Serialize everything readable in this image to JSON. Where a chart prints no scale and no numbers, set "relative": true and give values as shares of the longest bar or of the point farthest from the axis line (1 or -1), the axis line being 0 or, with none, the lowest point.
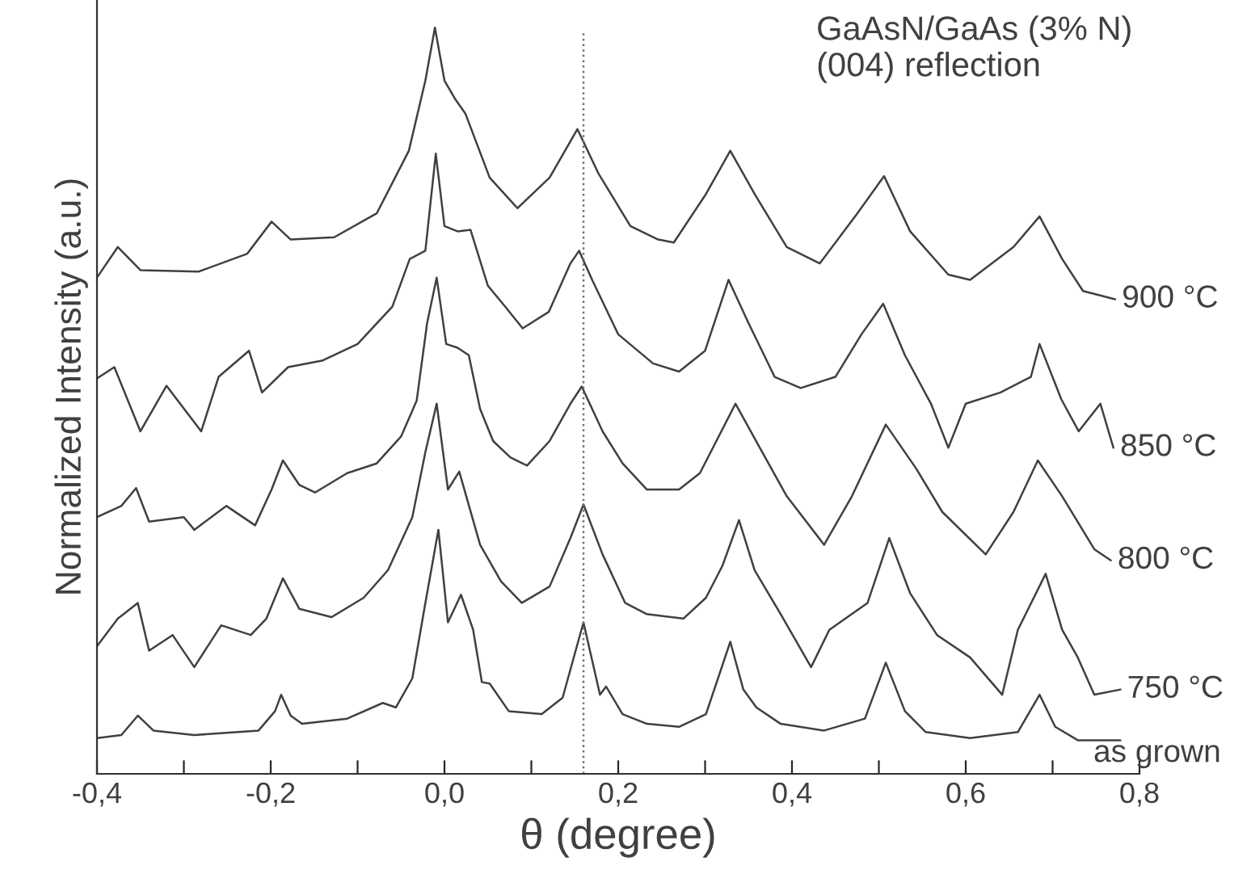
{
  "chart_data": {
    "type": "line",
    "relative": true,
    "xlabel": "θ (degree)",
    "ylabel": "Normalized Intensity (a.u.)",
    "annotations": [
      "GaAsN/GaAs (3% N)\n(004) reflection"
    ],
    "xlim": [
      -0.4,
      0.8
    ],
    "xticks": [
      {
        "value": -0.4,
        "label": "-0,4"
      },
      {
        "value": -0.3,
        "label": null
      },
      {
        "value": -0.2,
        "label": "-0,2"
      },
      {
        "value": -0.1,
        "label": null
      },
      {
        "value": 0.0,
        "label": "0,0"
      },
      {
        "value": 0.1,
        "label": null
      },
      {
        "value": 0.2,
        "label": "0,2"
      },
      {
        "value": 0.3,
        "label": null
      },
      {
        "value": 0.4,
        "label": "0,4"
      },
      {
        "value": 0.5,
        "label": null
      },
      {
        "value": 0.6,
        "label": "0,6"
      },
      {
        "value": 0.7,
        "label": null
      },
      {
        "value": 0.8,
        "label": "0,8"
      }
    ],
    "ref_lines": [
      {
        "axis": "x",
        "value": 0.16,
        "color": "#707070",
        "line_style": "dotted"
      }
    ],
    "grid": false,
    "legend": false,
    "marker": "none",
    "line_style": "solid",
    "series": [
      {
        "name": "900 °C",
        "color": "#404040",
        "x": [
          -0.4,
          -0.376,
          -0.35,
          -0.283,
          -0.227,
          -0.199,
          -0.177,
          -0.127,
          -0.078,
          -0.041,
          -0.022,
          -0.011,
          0.0,
          0.013,
          0.024,
          0.052,
          0.084,
          0.121,
          0.153,
          0.177,
          0.214,
          0.246,
          0.264,
          0.301,
          0.329,
          0.357,
          0.394,
          0.432,
          0.474,
          0.506,
          0.536,
          0.58,
          0.605,
          0.655,
          0.685,
          0.711,
          0.735,
          0.772
        ],
        "values": [
          0.665,
          0.706,
          0.675,
          0.673,
          0.697,
          0.74,
          0.716,
          0.719,
          0.751,
          0.835,
          0.929,
          1.0,
          0.929,
          0.903,
          0.885,
          0.799,
          0.758,
          0.799,
          0.864,
          0.805,
          0.734,
          0.716,
          0.712,
          0.777,
          0.835,
          0.777,
          0.706,
          0.684,
          0.749,
          0.801,
          0.727,
          0.669,
          0.662,
          0.706,
          0.747,
          0.69,
          0.647,
          0.636
        ]
      },
      {
        "name": "850 °C",
        "color": "#404040",
        "x": [
          -0.4,
          -0.38,
          -0.35,
          -0.32,
          -0.28,
          -0.26,
          -0.225,
          -0.21,
          -0.18,
          -0.14,
          -0.1,
          -0.06,
          -0.04,
          -0.022,
          -0.01,
          0.0,
          0.015,
          0.03,
          0.05,
          0.07,
          0.09,
          0.12,
          0.145,
          0.155,
          0.17,
          0.2,
          0.24,
          0.27,
          0.3,
          0.327,
          0.35,
          0.38,
          0.41,
          0.45,
          0.48,
          0.505,
          0.53,
          0.56,
          0.58,
          0.6,
          0.64,
          0.675,
          0.685,
          0.71,
          0.73,
          0.755,
          0.77
        ],
        "values": [
          0.53,
          0.545,
          0.459,
          0.52,
          0.459,
          0.532,
          0.567,
          0.511,
          0.545,
          0.554,
          0.576,
          0.626,
          0.69,
          0.701,
          0.831,
          0.734,
          0.727,
          0.729,
          0.654,
          0.626,
          0.597,
          0.619,
          0.684,
          0.701,
          0.662,
          0.589,
          0.55,
          0.539,
          0.567,
          0.662,
          0.604,
          0.532,
          0.517,
          0.532,
          0.589,
          0.63,
          0.561,
          0.496,
          0.437,
          0.496,
          0.511,
          0.532,
          0.576,
          0.502,
          0.459,
          0.496,
          0.437
        ]
      },
      {
        "name": "800 °C",
        "color": "#404040",
        "x": [
          -0.4,
          -0.372,
          -0.355,
          -0.34,
          -0.3,
          -0.288,
          -0.251,
          -0.218,
          -0.199,
          -0.186,
          -0.167,
          -0.149,
          -0.112,
          -0.078,
          -0.05,
          -0.032,
          -0.02,
          -0.009,
          0.002,
          0.015,
          0.028,
          0.041,
          0.056,
          0.076,
          0.095,
          0.121,
          0.145,
          0.158,
          0.182,
          0.205,
          0.233,
          0.27,
          0.294,
          0.335,
          0.363,
          0.394,
          0.437,
          0.469,
          0.508,
          0.543,
          0.573,
          0.623,
          0.655,
          0.683,
          0.711,
          0.748,
          0.767
        ],
        "values": [
          0.344,
          0.359,
          0.383,
          0.338,
          0.344,
          0.327,
          0.359,
          0.333,
          0.381,
          0.42,
          0.387,
          0.377,
          0.403,
          0.416,
          0.452,
          0.5,
          0.604,
          0.665,
          0.576,
          0.571,
          0.561,
          0.489,
          0.446,
          0.424,
          0.413,
          0.446,
          0.496,
          0.519,
          0.459,
          0.416,
          0.381,
          0.381,
          0.403,
          0.496,
          0.437,
          0.372,
          0.307,
          0.372,
          0.468,
          0.409,
          0.351,
          0.294,
          0.351,
          0.42,
          0.372,
          0.301,
          0.286
        ]
      },
      {
        "name": "750 °C",
        "color": "#404040",
        "x": [
          -0.4,
          -0.376,
          -0.353,
          -0.34,
          -0.313,
          -0.288,
          -0.257,
          -0.223,
          -0.205,
          -0.186,
          -0.167,
          -0.13,
          -0.093,
          -0.065,
          -0.037,
          -0.022,
          -0.009,
          0.004,
          0.017,
          0.041,
          0.065,
          0.089,
          0.121,
          0.145,
          0.16,
          0.182,
          0.208,
          0.233,
          0.275,
          0.301,
          0.32,
          0.339,
          0.357,
          0.387,
          0.422,
          0.443,
          0.487,
          0.512,
          0.536,
          0.567,
          0.605,
          0.642,
          0.66,
          0.692,
          0.711,
          0.729,
          0.748,
          0.778
        ],
        "values": [
          0.171,
          0.208,
          0.229,
          0.165,
          0.186,
          0.143,
          0.199,
          0.186,
          0.208,
          0.262,
          0.221,
          0.21,
          0.236,
          0.273,
          0.344,
          0.431,
          0.496,
          0.381,
          0.405,
          0.307,
          0.258,
          0.229,
          0.251,
          0.316,
          0.361,
          0.294,
          0.229,
          0.214,
          0.208,
          0.236,
          0.279,
          0.34,
          0.273,
          0.214,
          0.143,
          0.193,
          0.229,
          0.316,
          0.242,
          0.186,
          0.156,
          0.106,
          0.193,
          0.268,
          0.193,
          0.156,
          0.106,
          0.113
        ]
      },
      {
        "name": "as grown",
        "color": "#404040",
        "x": [
          -0.4,
          -0.372,
          -0.353,
          -0.335,
          -0.288,
          -0.214,
          -0.195,
          -0.188,
          -0.177,
          -0.164,
          -0.112,
          -0.071,
          -0.056,
          -0.037,
          -0.022,
          -0.007,
          0.004,
          0.019,
          0.033,
          0.043,
          0.052,
          0.074,
          0.112,
          0.136,
          0.16,
          0.179,
          0.186,
          0.205,
          0.233,
          0.27,
          0.301,
          0.329,
          0.344,
          0.359,
          0.387,
          0.437,
          0.484,
          0.508,
          0.53,
          0.554,
          0.605,
          0.66,
          0.685,
          0.703,
          0.729,
          0.778
        ],
        "values": [
          0.048,
          0.052,
          0.078,
          0.058,
          0.052,
          0.058,
          0.084,
          0.106,
          0.078,
          0.067,
          0.074,
          0.095,
          0.089,
          0.128,
          0.229,
          0.327,
          0.203,
          0.24,
          0.193,
          0.123,
          0.121,
          0.084,
          0.08,
          0.102,
          0.203,
          0.106,
          0.117,
          0.08,
          0.067,
          0.063,
          0.08,
          0.177,
          0.113,
          0.089,
          0.067,
          0.058,
          0.074,
          0.149,
          0.084,
          0.056,
          0.048,
          0.056,
          0.106,
          0.063,
          0.045,
          0.045
        ]
      }
    ]
  }
}
